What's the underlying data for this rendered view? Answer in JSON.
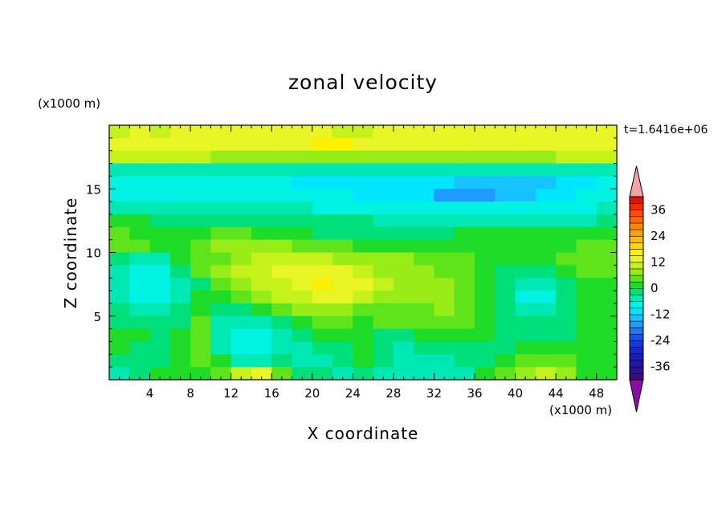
{
  "chart_data": {
    "type": "heatmap",
    "title": "zonal velocity",
    "xlabel": "X coordinate",
    "ylabel": "Z coordinate",
    "x_unit": "(x1000 m)",
    "y_unit": "(x1000 m)",
    "time_label": "t=1.6416e+06",
    "xlim": [
      0,
      50
    ],
    "ylim": [
      0,
      20
    ],
    "x_ticks": [
      4,
      8,
      12,
      16,
      20,
      24,
      28,
      32,
      36,
      40,
      44,
      48
    ],
    "y_ticks": [
      5,
      10,
      15
    ],
    "x_tick_labels": [
      "4",
      "8",
      "12",
      "16",
      "20",
      "24",
      "28",
      "32",
      "36",
      "40",
      "44",
      "48"
    ],
    "y_tick_labels": [
      "5",
      "10",
      "15"
    ],
    "x_centers": [
      1,
      3,
      5,
      7,
      9,
      11,
      13,
      15,
      17,
      19,
      21,
      23,
      25,
      27,
      29,
      31,
      33,
      35,
      37,
      39,
      41,
      43,
      45,
      47,
      49
    ],
    "z_centers": [
      19.5,
      18.5,
      17.5,
      16.5,
      15.5,
      14.5,
      13.5,
      12.5,
      11.5,
      10.5,
      9.5,
      8.5,
      7.5,
      6.5,
      5.5,
      4.5,
      3.5,
      2.5,
      1.5,
      0.5
    ],
    "values": [
      [
        11,
        12,
        11,
        12,
        13,
        12,
        12,
        12,
        12,
        12,
        12,
        11,
        11,
        12,
        12,
        12,
        12,
        13,
        13,
        12,
        12,
        12,
        12,
        12,
        12
      ],
      [
        12,
        12,
        13,
        13,
        13,
        13,
        13,
        14,
        14,
        14,
        15,
        15,
        14,
        14,
        14,
        13,
        13,
        14,
        14,
        14,
        13,
        13,
        13,
        12,
        12
      ],
      [
        9,
        9,
        9,
        9,
        9,
        8,
        8,
        8,
        8,
        8,
        8,
        8,
        8,
        8,
        8,
        8,
        8,
        8,
        8,
        8,
        8,
        8,
        9,
        9,
        9
      ],
      [
        -4,
        -4,
        -5,
        -5,
        -5,
        -5,
        -5,
        -4,
        -5,
        -5,
        -5,
        -5,
        -5,
        -5,
        -5,
        -5,
        -5,
        -5,
        -5,
        -5,
        -5,
        -5,
        -5,
        -5,
        -4
      ],
      [
        -8,
        -8,
        -9,
        -9,
        -9,
        -9,
        -9,
        -9,
        -9,
        -10,
        -10,
        -10,
        -10,
        -11,
        -11,
        -11,
        -12,
        -13,
        -13,
        -13,
        -13,
        -13,
        -10,
        -10,
        -9
      ],
      [
        -7,
        -7,
        -8,
        -8,
        -8,
        -8,
        -8,
        -8,
        -8,
        -8,
        -9,
        -9,
        -12,
        -10,
        -10,
        -10,
        -17,
        -18,
        -17,
        -15,
        -14,
        -12,
        -10,
        -9,
        -8
      ],
      [
        -5,
        -5,
        -5,
        -6,
        -6,
        -6,
        -6,
        -6,
        -6,
        -6,
        -7,
        -7,
        -7,
        -8,
        -8,
        -8,
        -8,
        -8,
        -8,
        -8,
        -8,
        -8,
        -7,
        -7,
        -6
      ],
      [
        0,
        0,
        -1,
        -1,
        -1,
        -1,
        -1,
        -2,
        -2,
        -3,
        -3,
        -3,
        -3,
        -4,
        -4,
        -4,
        -4,
        -4,
        -4,
        -4,
        -4,
        -4,
        -4,
        -4,
        -3
      ],
      [
        3,
        2,
        2,
        2,
        2,
        3,
        3,
        2,
        2,
        2,
        -1,
        -1,
        -1,
        -2,
        -2,
        -1,
        -1,
        1,
        1,
        1,
        0,
        1,
        1,
        1,
        1
      ],
      [
        4,
        3,
        2,
        1,
        3,
        6,
        7,
        6,
        6,
        5,
        4,
        3,
        2,
        1,
        1,
        1,
        1,
        1,
        1,
        1,
        1,
        2,
        2,
        3,
        3
      ],
      [
        -2,
        -4,
        -5,
        1,
        4,
        5,
        8,
        10,
        10,
        9,
        9,
        7,
        7,
        7,
        6,
        5,
        4,
        3,
        2,
        1,
        0,
        1,
        3,
        4,
        4
      ],
      [
        -4,
        -8,
        -8,
        -2,
        3,
        6,
        9,
        10,
        12,
        13,
        14,
        12,
        10,
        8,
        7,
        6,
        5,
        3,
        1,
        -1,
        -2,
        -2,
        1,
        3,
        4
      ],
      [
        -6,
        -9,
        -9,
        -6,
        -1,
        3,
        7,
        9,
        11,
        14,
        16,
        14,
        12,
        10,
        8,
        7,
        6,
        3,
        1,
        -3,
        -6,
        -6,
        -2,
        1,
        2
      ],
      [
        -5,
        -8,
        -8,
        -4,
        1,
        2,
        4,
        7,
        9,
        11,
        13,
        12,
        9,
        8,
        7,
        6,
        7,
        4,
        2,
        -3,
        -7,
        -7,
        -3,
        0,
        1
      ],
      [
        -3,
        -5,
        -6,
        -2,
        2,
        -2,
        -2,
        0,
        3,
        6,
        8,
        7,
        5,
        4,
        4,
        5,
        6,
        4,
        2,
        -2,
        -5,
        -5,
        -2,
        0,
        0
      ],
      [
        -1,
        -2,
        -3,
        -1,
        3,
        -5,
        -5,
        -4,
        -1,
        2,
        3,
        3,
        2,
        3,
        3,
        4,
        5,
        3,
        1,
        -1,
        -3,
        -3,
        -1,
        0,
        0
      ],
      [
        1,
        0,
        -1,
        0,
        3,
        -6,
        -8,
        -7,
        -4,
        -2,
        0,
        1,
        0,
        -1,
        -1,
        0,
        1,
        2,
        0,
        -1,
        -2,
        -2,
        -1,
        0,
        1
      ],
      [
        0,
        -1,
        -2,
        1,
        4,
        -5,
        -9,
        -8,
        -5,
        -4,
        -3,
        -1,
        1,
        -3,
        -4,
        -3,
        -2,
        -1,
        -2,
        -1,
        1,
        2,
        1,
        0,
        1
      ],
      [
        -2,
        -3,
        -1,
        1,
        3,
        0,
        -4,
        -5,
        -3,
        -4,
        -4,
        -2,
        0,
        -3,
        -5,
        -5,
        -4,
        -3,
        -2,
        0,
        4,
        5,
        3,
        1,
        0
      ],
      [
        -4,
        -2,
        0,
        2,
        2,
        3,
        10,
        12,
        4,
        -2,
        -3,
        -4,
        -2,
        -4,
        -6,
        -6,
        -5,
        -4,
        0,
        4,
        8,
        10,
        6,
        2,
        0
      ]
    ],
    "colorbar_levels": [
      -42,
      -39,
      -36,
      -33,
      -30,
      -27,
      -24,
      -21,
      -18,
      -15,
      -12,
      -9,
      -6,
      -3,
      0,
      3,
      6,
      9,
      12,
      15,
      18,
      21,
      24,
      27,
      30,
      33,
      36,
      39,
      42
    ],
    "colorbar_colors": [
      "#3a0d7a",
      "#2b138f",
      "#2016a6",
      "#1a1ac0",
      "#1527d9",
      "#1337ee",
      "#0f52ff",
      "#1a78ff",
      "#1e9bff",
      "#16c2ff",
      "#00e6ff",
      "#00f3e2",
      "#00e8b4",
      "#00e07a",
      "#1edc28",
      "#5fe41c",
      "#98ec18",
      "#c5f21a",
      "#eaf526",
      "#fcf000",
      "#ffd700",
      "#ffbe00",
      "#ffa200",
      "#ff8600",
      "#ff6a00",
      "#ff4d00",
      "#f02d00",
      "#dc1400"
    ],
    "colorbar_over_color": "#f5a4a4",
    "colorbar_under_color": "#8d0ca6",
    "colorbar_tick_values": [
      -36,
      -24,
      -12,
      0,
      12,
      24,
      36
    ],
    "colorbar_tick_labels": [
      "-36",
      "-24",
      "-12",
      "0",
      "12",
      "24",
      "36"
    ],
    "grid": false,
    "legend": "colorbar-right"
  }
}
